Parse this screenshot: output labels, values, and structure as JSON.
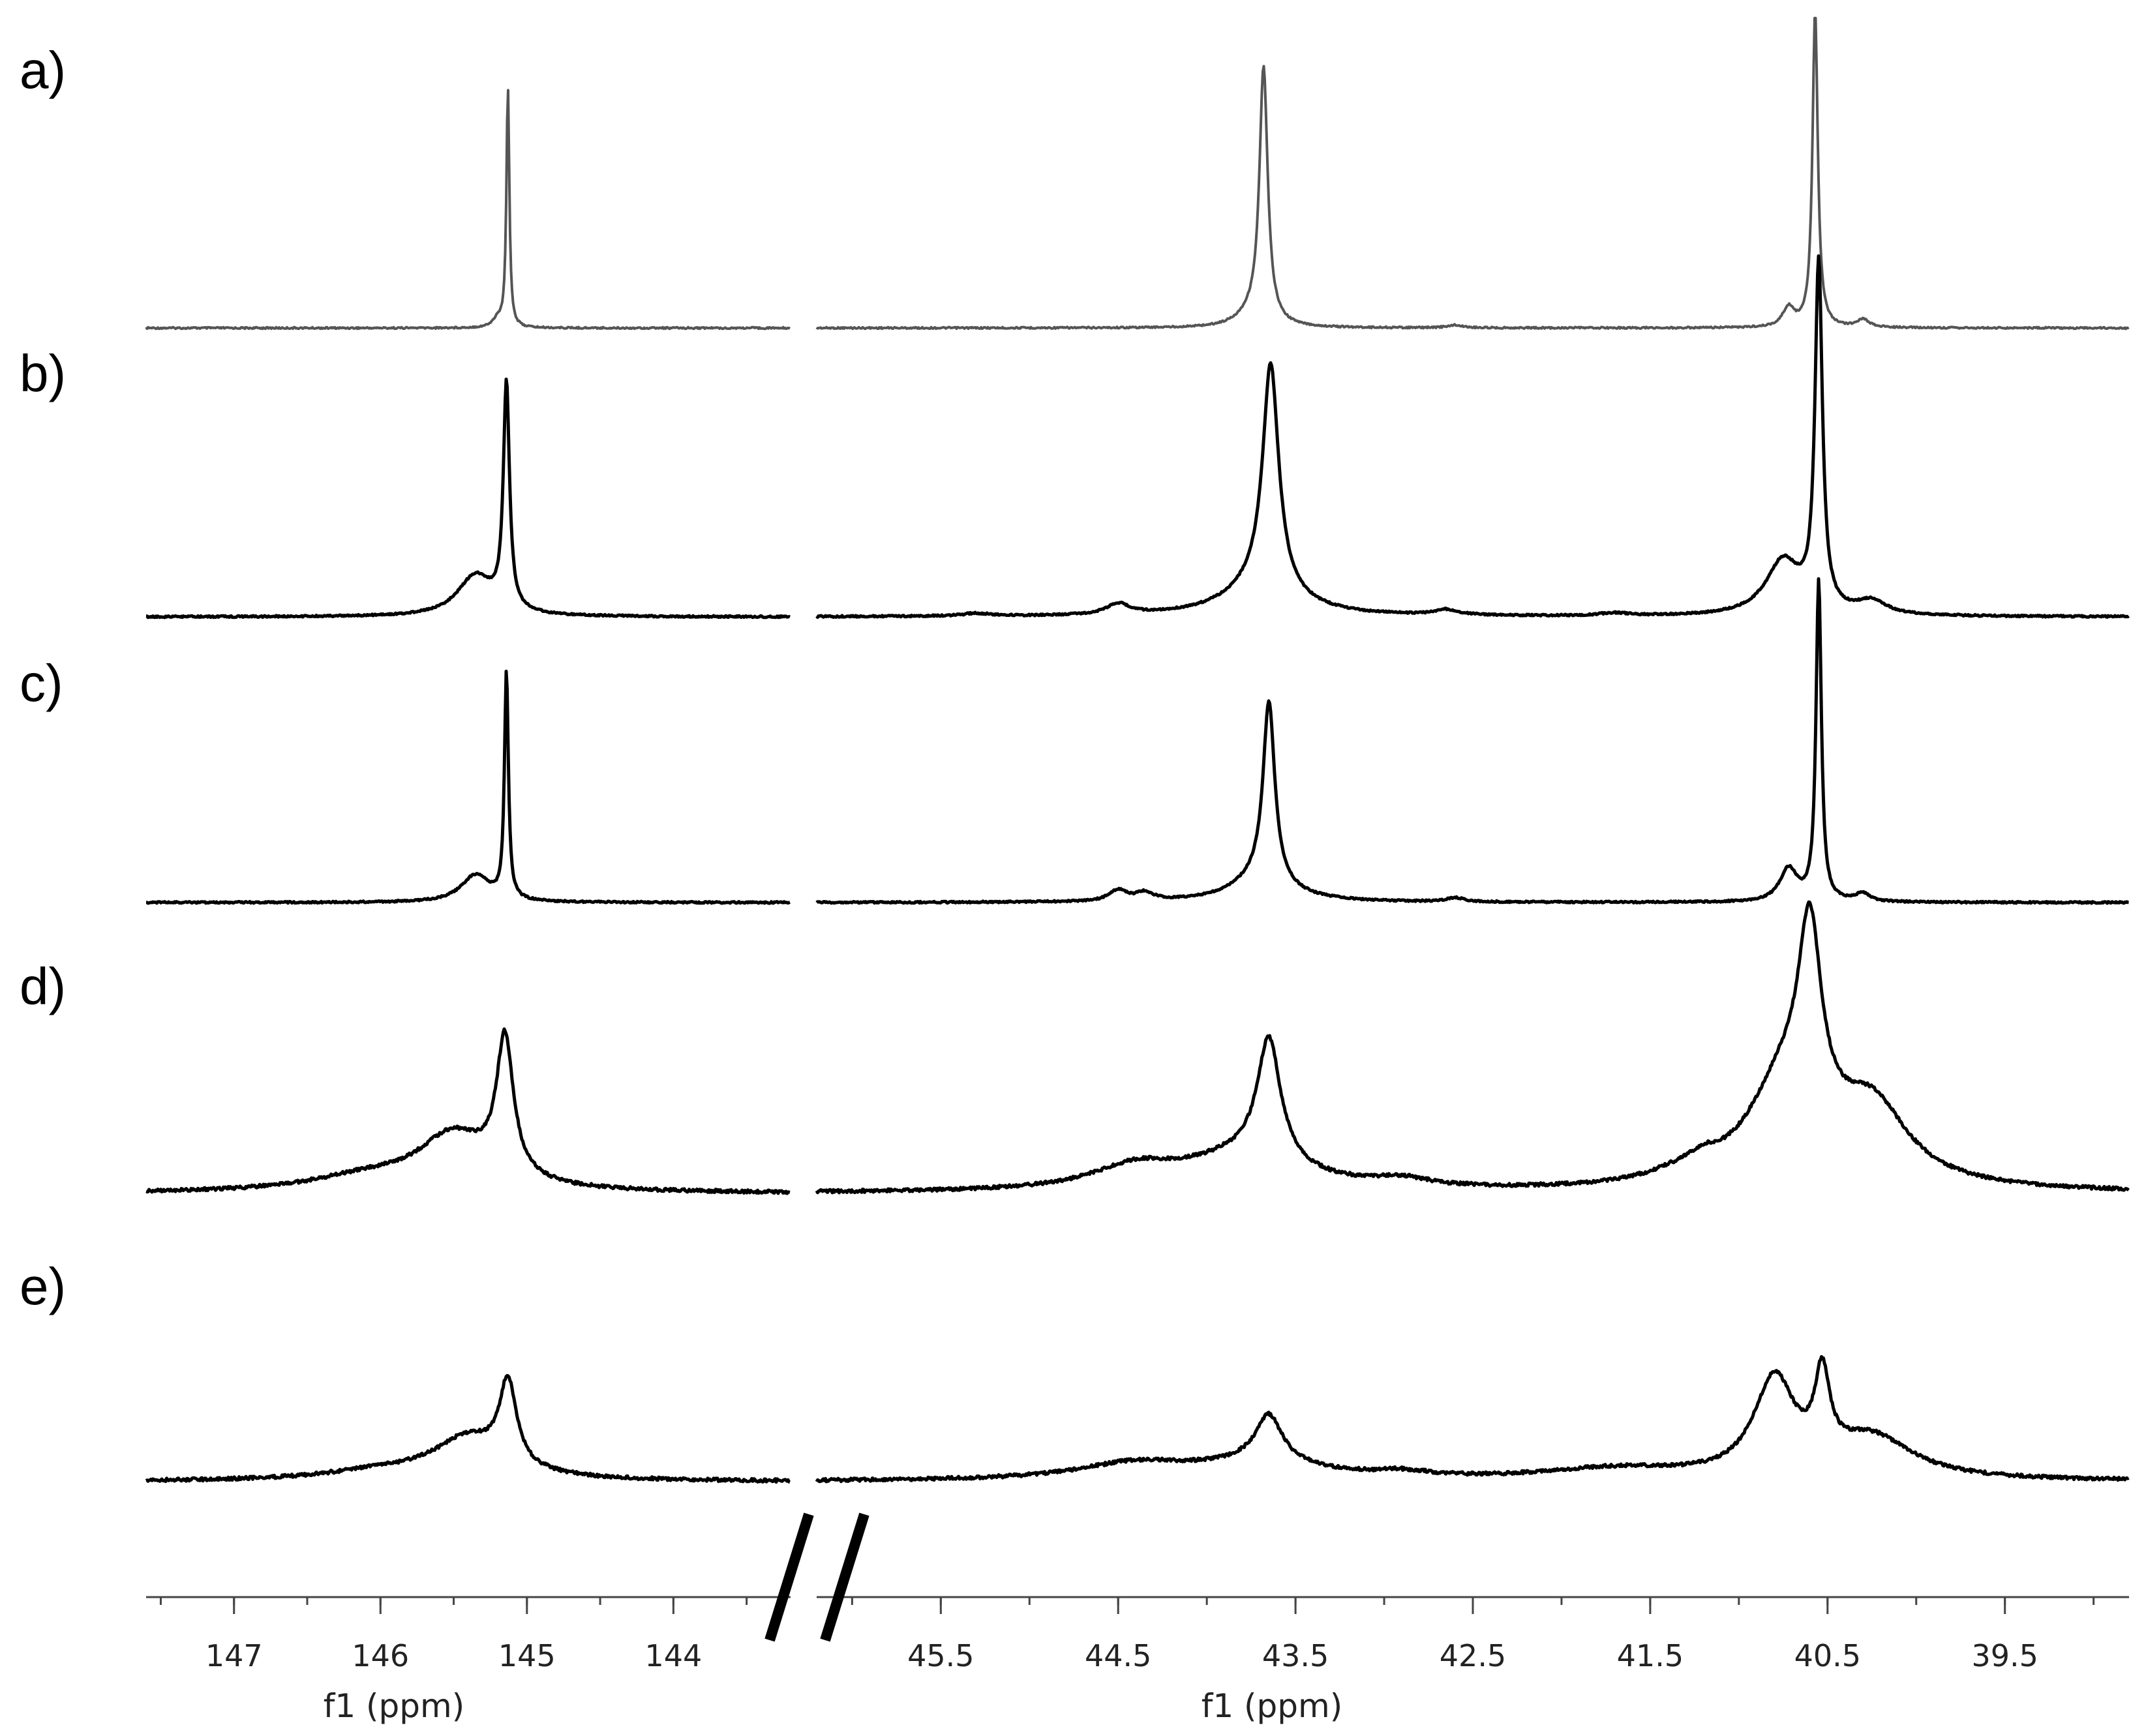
{
  "chart_data": {
    "type": "line",
    "title": "",
    "xlabel": "f1 (ppm)",
    "axis_break": true,
    "axis_direction": "descending",
    "panels": [
      {
        "name": "left",
        "xlim": [
          147.6,
          143.2
        ],
        "ticks": [
          "147",
          "146",
          "145",
          "144"
        ]
      },
      {
        "name": "right",
        "xlim": [
          46.2,
          38.8
        ],
        "ticks": [
          "45.5",
          "44.5",
          "43.5",
          "42.5",
          "41.5",
          "40.5",
          "39.5"
        ]
      }
    ],
    "traces": [
      {
        "label": "a)",
        "color": "#555555",
        "peaks": [
          {
            "ppm": 145.13,
            "height": 0.88,
            "width": 0.012
          },
          {
            "ppm": 145.2,
            "height": 0.03,
            "width": 0.04
          },
          {
            "ppm": 43.68,
            "height": 0.93,
            "width": 0.028
          },
          {
            "ppm": 43.75,
            "height": 0.04,
            "width": 0.1
          },
          {
            "ppm": 40.57,
            "height": 1.15,
            "width": 0.018
          },
          {
            "ppm": 40.72,
            "height": 0.07,
            "width": 0.04
          },
          {
            "ppm": 40.3,
            "height": 0.03,
            "width": 0.04
          },
          {
            "ppm": 42.6,
            "height": 0.01,
            "width": 0.05
          }
        ]
      },
      {
        "label": "b)",
        "color": "#000000",
        "peaks": [
          {
            "ppm": 145.14,
            "height": 0.82,
            "width": 0.025
          },
          {
            "ppm": 145.35,
            "height": 0.15,
            "width": 0.15
          },
          {
            "ppm": 43.64,
            "height": 0.83,
            "width": 0.055
          },
          {
            "ppm": 43.7,
            "height": 0.1,
            "width": 0.25
          },
          {
            "ppm": 40.55,
            "height": 1.26,
            "width": 0.025
          },
          {
            "ppm": 40.75,
            "height": 0.2,
            "width": 0.12
          },
          {
            "ppm": 40.25,
            "height": 0.05,
            "width": 0.1
          },
          {
            "ppm": 44.5,
            "height": 0.04,
            "width": 0.08
          },
          {
            "ppm": 42.65,
            "height": 0.02,
            "width": 0.08
          },
          {
            "ppm": 45.3,
            "height": 0.01,
            "width": 0.1
          },
          {
            "ppm": 41.7,
            "height": 0.01,
            "width": 0.1
          }
        ]
      },
      {
        "label": "c)",
        "color": "#000000",
        "peaks": [
          {
            "ppm": 145.14,
            "height": 0.83,
            "width": 0.016
          },
          {
            "ppm": 145.35,
            "height": 0.1,
            "width": 0.12
          },
          {
            "ppm": 43.65,
            "height": 0.66,
            "width": 0.04
          },
          {
            "ppm": 43.7,
            "height": 0.08,
            "width": 0.2
          },
          {
            "ppm": 40.55,
            "height": 1.17,
            "width": 0.018
          },
          {
            "ppm": 40.72,
            "height": 0.12,
            "width": 0.06
          },
          {
            "ppm": 40.3,
            "height": 0.03,
            "width": 0.05
          },
          {
            "ppm": 44.5,
            "height": 0.04,
            "width": 0.06
          },
          {
            "ppm": 44.35,
            "height": 0.03,
            "width": 0.06
          },
          {
            "ppm": 42.6,
            "height": 0.015,
            "width": 0.06
          }
        ]
      },
      {
        "label": "d)",
        "color": "#000000",
        "peaks": [
          {
            "ppm": 145.15,
            "height": 0.5,
            "width": 0.07
          },
          {
            "ppm": 145.5,
            "height": 0.2,
            "width": 0.3
          },
          {
            "ppm": 146.1,
            "height": 0.05,
            "width": 0.5
          },
          {
            "ppm": 43.65,
            "height": 0.45,
            "width": 0.08
          },
          {
            "ppm": 43.8,
            "height": 0.12,
            "width": 0.4
          },
          {
            "ppm": 44.4,
            "height": 0.08,
            "width": 0.3
          },
          {
            "ppm": 40.6,
            "height": 0.7,
            "width": 0.08
          },
          {
            "ppm": 40.75,
            "height": 0.35,
            "width": 0.25
          },
          {
            "ppm": 40.25,
            "height": 0.28,
            "width": 0.25
          },
          {
            "ppm": 42.9,
            "height": 0.03,
            "width": 0.2
          },
          {
            "ppm": 41.3,
            "height": 0.04,
            "width": 0.25
          },
          {
            "ppm": 41.2,
            "height": 0.03,
            "width": 0.08
          }
        ]
      },
      {
        "label": "e)",
        "color": "#000000",
        "peaks": [
          {
            "ppm": 145.13,
            "height": 0.3,
            "width": 0.07
          },
          {
            "ppm": 145.4,
            "height": 0.15,
            "width": 0.3
          },
          {
            "ppm": 146,
            "height": 0.03,
            "width": 0.5
          },
          {
            "ppm": 43.65,
            "height": 0.17,
            "width": 0.09
          },
          {
            "ppm": 43.7,
            "height": 0.06,
            "width": 0.4
          },
          {
            "ppm": 44.4,
            "height": 0.06,
            "width": 0.4
          },
          {
            "ppm": 40.8,
            "height": 0.35,
            "width": 0.14
          },
          {
            "ppm": 40.53,
            "height": 0.3,
            "width": 0.05
          },
          {
            "ppm": 40.25,
            "height": 0.15,
            "width": 0.28
          },
          {
            "ppm": 41.7,
            "height": 0.04,
            "width": 0.5
          },
          {
            "ppm": 42.9,
            "height": 0.02,
            "width": 0.2
          }
        ]
      }
    ]
  }
}
